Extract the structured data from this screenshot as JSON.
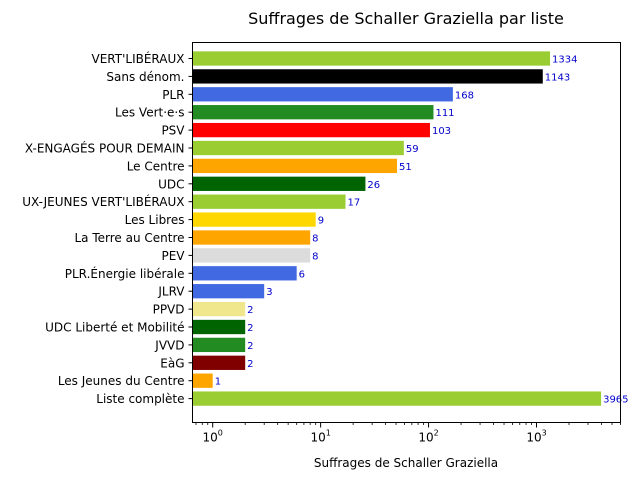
{
  "chart_data": {
    "type": "bar",
    "orientation": "horizontal",
    "title": "Suffrages de Schaller Graziella par liste",
    "xlabel": "Suffrages de Schaller Graziella",
    "ylabel": "",
    "xscale": "log",
    "xlim": [
      0.65,
      6000
    ],
    "x_ticks": [
      {
        "value": 1,
        "base": "10",
        "exp": "0"
      },
      {
        "value": 10,
        "base": "10",
        "exp": "1"
      },
      {
        "value": 100,
        "base": "10",
        "exp": "2"
      },
      {
        "value": 1000,
        "base": "10",
        "exp": "3"
      }
    ],
    "grid": false,
    "legend": "none",
    "value_label_color": "#0000cc",
    "bars": [
      {
        "label": "VERT'LIBÉRAUX",
        "value": 1334,
        "color": "#9acd32"
      },
      {
        "label": "Sans dénom.",
        "value": 1143,
        "color": "#000000"
      },
      {
        "label": "PLR",
        "value": 168,
        "color": "#4169e1"
      },
      {
        "label": "Les Vert·e·s",
        "value": 111,
        "color": "#228b22"
      },
      {
        "label": "PSV",
        "value": 103,
        "color": "#ff0000"
      },
      {
        "label": "X-ENGAGÉS POUR DEMAIN",
        "value": 59,
        "color": "#9acd32"
      },
      {
        "label": "Le Centre",
        "value": 51,
        "color": "#ffa500"
      },
      {
        "label": "UDC",
        "value": 26,
        "color": "#006400"
      },
      {
        "label": "UX-JEUNES VERT'LIBÉRAUX",
        "value": 17,
        "color": "#9acd32"
      },
      {
        "label": "Les Libres",
        "value": 9,
        "color": "#ffd700"
      },
      {
        "label": "La Terre au Centre",
        "value": 8,
        "color": "#ffa500"
      },
      {
        "label": "PEV",
        "value": 8,
        "color": "#dcdcdc"
      },
      {
        "label": "PLR.Énergie libérale",
        "value": 6,
        "color": "#4169e1"
      },
      {
        "label": "JLRV",
        "value": 3,
        "color": "#4169e1"
      },
      {
        "label": "PPVD",
        "value": 2,
        "color": "#f0e68c"
      },
      {
        "label": "UDC Liberté et Mobilité",
        "value": 2,
        "color": "#006400"
      },
      {
        "label": "JVVD",
        "value": 2,
        "color": "#228b22"
      },
      {
        "label": "EàG",
        "value": 2,
        "color": "#800000"
      },
      {
        "label": "Les Jeunes du Centre",
        "value": 1,
        "color": "#ffa500"
      },
      {
        "label": "Liste complète",
        "value": 3965,
        "color": "#9acd32"
      }
    ]
  }
}
